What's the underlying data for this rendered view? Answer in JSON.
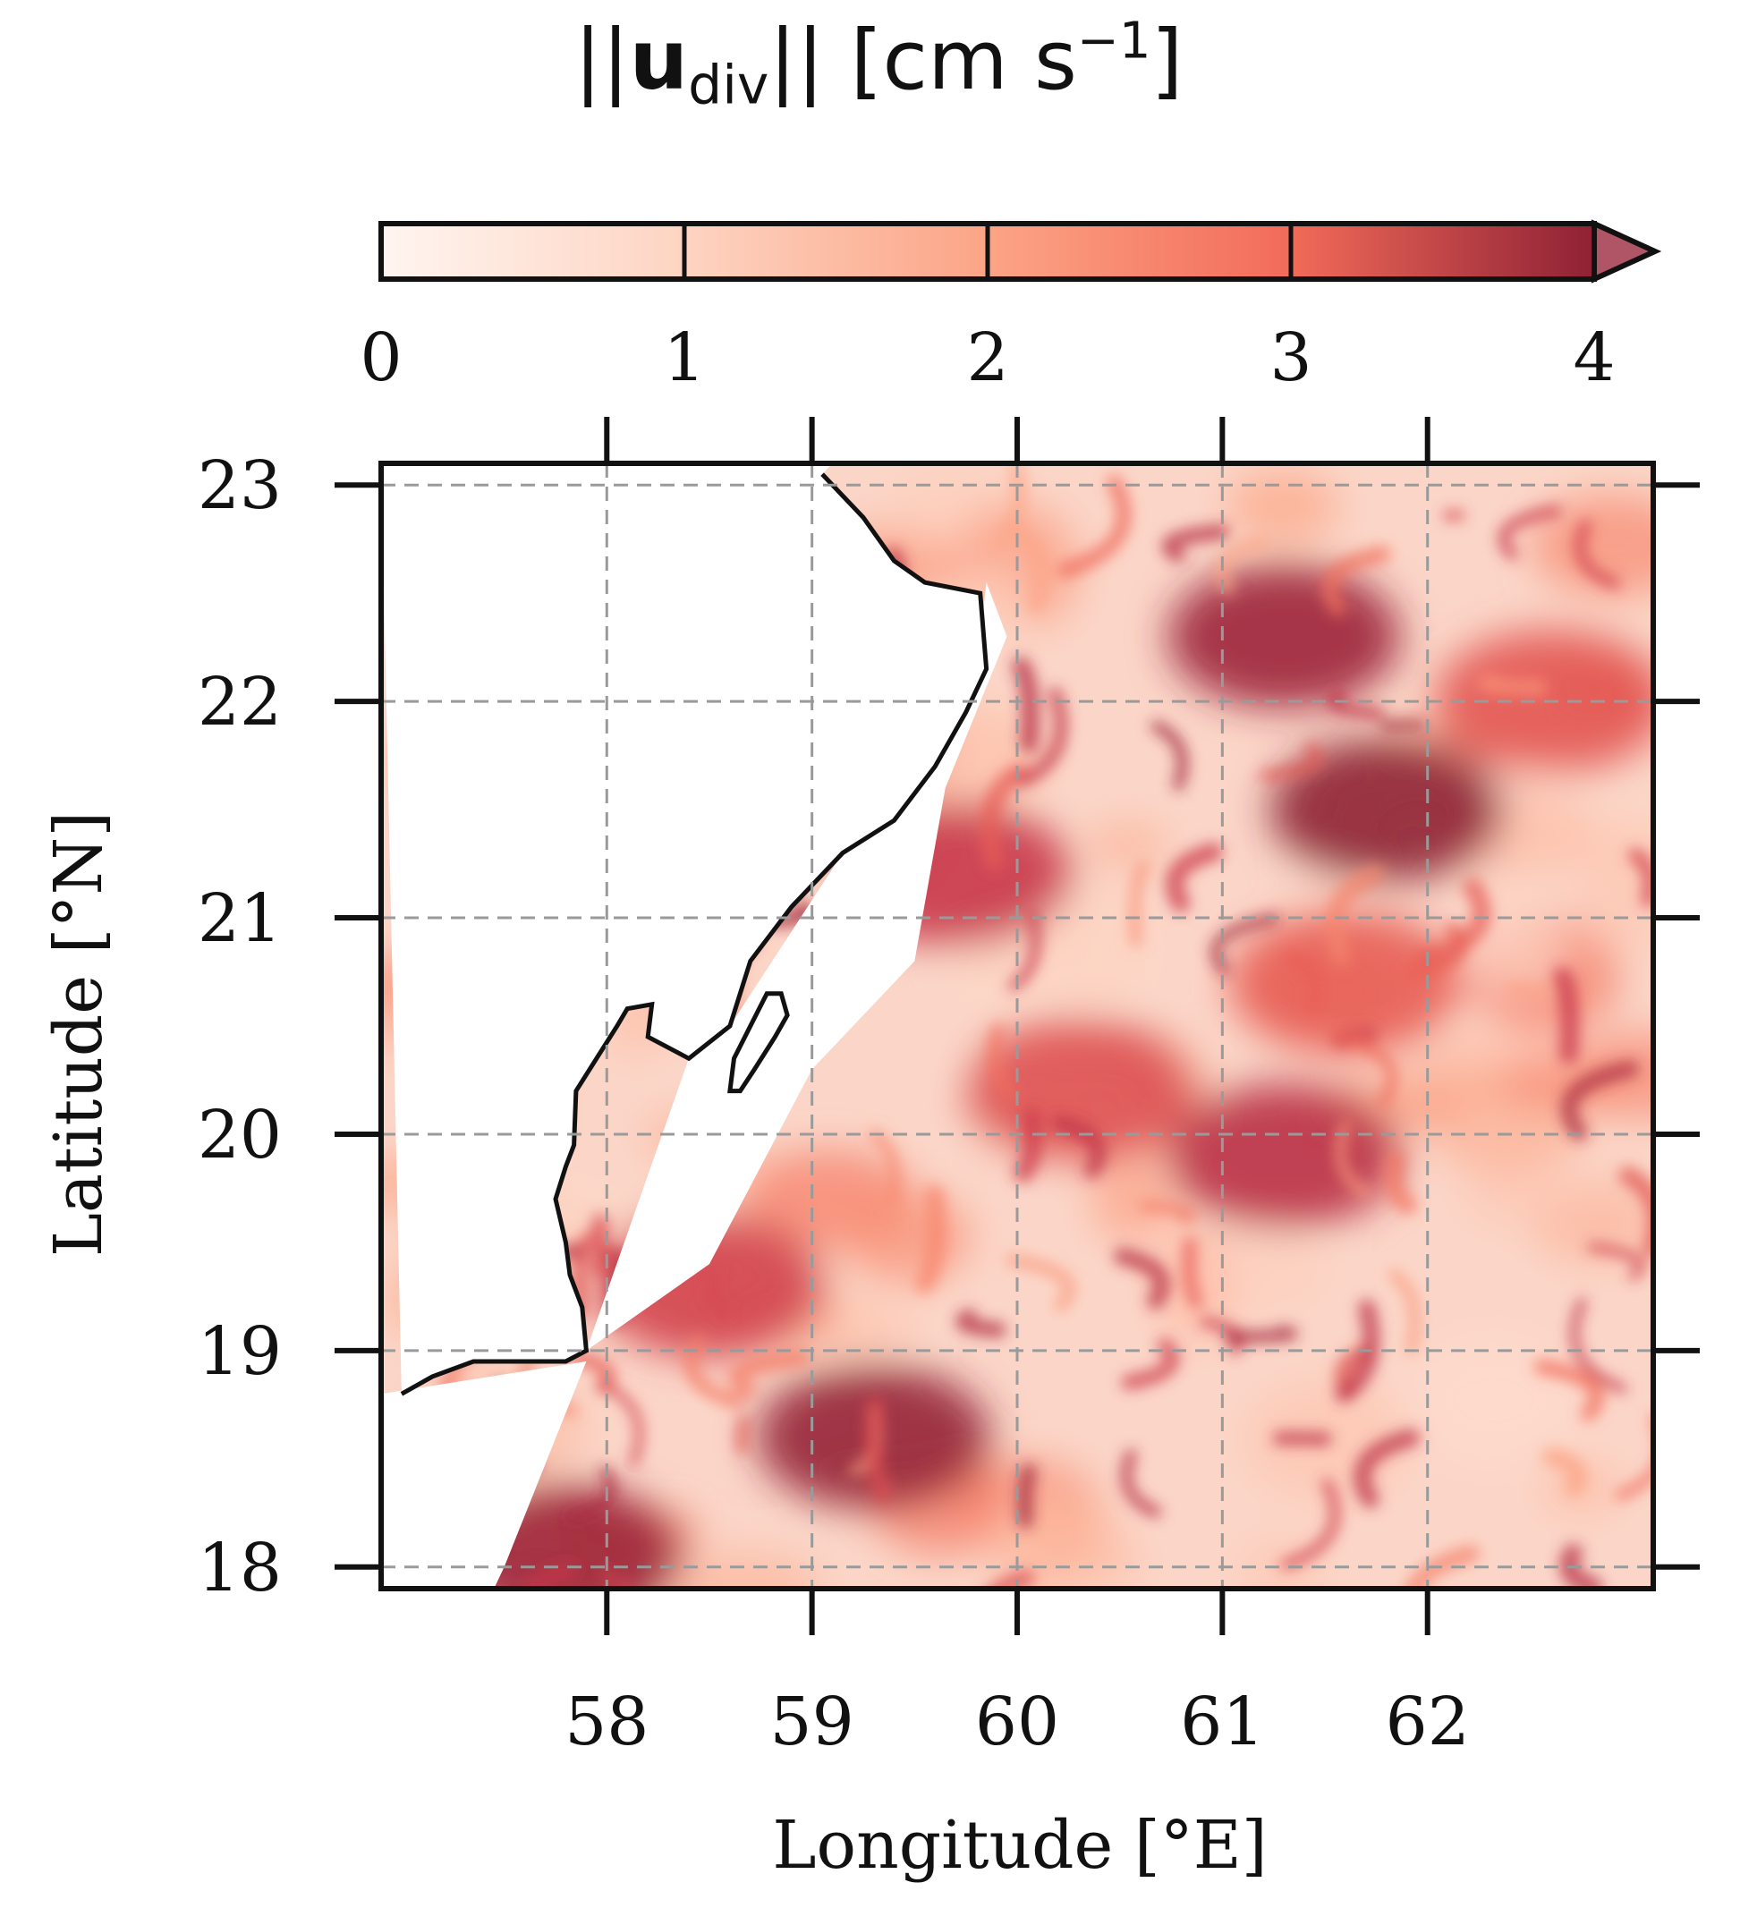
{
  "colorbar": {
    "label_prefix": "||",
    "label_vector": "u",
    "label_sub": "div",
    "label_suffix": "||",
    "label_units_open": "[cm s",
    "label_units_sup": "−1",
    "label_units_close": "]",
    "ticks": [
      "0",
      "1",
      "2",
      "3",
      "4"
    ],
    "extend": "max",
    "colors": [
      "#fff5f0",
      "#fdd4c2",
      "#fca486",
      "#f26b59",
      "#c9364a",
      "#8e2135"
    ]
  },
  "axes": {
    "xlabel": "Longitude [°E]",
    "ylabel": "Latitude [°N]",
    "x_ticks": [
      "58",
      "59",
      "60",
      "61",
      "62"
    ],
    "y_ticks": [
      "18",
      "19",
      "20",
      "21",
      "22",
      "23"
    ],
    "grid": true,
    "grid_style": "dashed",
    "extent": {
      "lon": [
        56.9,
        63.1
      ],
      "lat": [
        17.9,
        23.1
      ]
    }
  },
  "chart_data": {
    "type": "heatmap",
    "title": "",
    "xlabel": "Longitude [°E]",
    "ylabel": "Latitude [°N]",
    "xlim": [
      56.9,
      63.1
    ],
    "ylim": [
      17.9,
      23.1
    ],
    "clim": [
      0,
      4
    ],
    "colorbar_label": "||u_div|| [cm s−1]",
    "hotspots": [
      {
        "lon": 61.8,
        "lat": 21.5,
        "value": 4.0
      },
      {
        "lon": 61.3,
        "lat": 22.3,
        "value": 3.8
      },
      {
        "lon": 59.3,
        "lat": 18.6,
        "value": 3.9
      },
      {
        "lon": 57.8,
        "lat": 18.05,
        "value": 3.8
      },
      {
        "lon": 61.3,
        "lat": 19.9,
        "value": 3.4
      },
      {
        "lon": 59.7,
        "lat": 21.2,
        "value": 3.2
      },
      {
        "lon": 58.5,
        "lat": 19.3,
        "value": 3.0
      },
      {
        "lon": 60.3,
        "lat": 20.2,
        "value": 2.8
      },
      {
        "lon": 61.6,
        "lat": 20.7,
        "value": 2.6
      },
      {
        "lon": 62.6,
        "lat": 22.0,
        "value": 2.7
      }
    ],
    "coastline": [
      [
        57.0,
        18.8
      ],
      [
        57.15,
        18.88
      ],
      [
        57.35,
        18.95
      ],
      [
        57.8,
        18.95
      ],
      [
        57.9,
        19.0
      ],
      [
        57.88,
        19.2
      ],
      [
        57.82,
        19.35
      ],
      [
        57.8,
        19.5
      ],
      [
        57.75,
        19.7
      ],
      [
        57.8,
        19.85
      ],
      [
        57.84,
        19.95
      ],
      [
        57.85,
        20.2
      ],
      [
        57.95,
        20.35
      ],
      [
        58.05,
        20.5
      ],
      [
        58.1,
        20.58
      ],
      [
        58.22,
        20.6
      ],
      [
        58.2,
        20.45
      ],
      [
        58.4,
        20.35
      ],
      [
        58.6,
        20.5
      ],
      [
        58.7,
        20.8
      ],
      [
        58.9,
        21.05
      ],
      [
        59.15,
        21.3
      ],
      [
        59.4,
        21.45
      ],
      [
        59.6,
        21.7
      ],
      [
        59.75,
        21.95
      ],
      [
        59.85,
        22.15
      ],
      [
        59.82,
        22.5
      ],
      [
        59.55,
        22.55
      ],
      [
        59.4,
        22.65
      ],
      [
        59.25,
        22.85
      ],
      [
        59.05,
        23.05
      ]
    ],
    "island": [
      [
        58.85,
        20.65
      ],
      [
        58.88,
        20.55
      ],
      [
        58.82,
        20.45
      ],
      [
        58.72,
        20.3
      ],
      [
        58.65,
        20.2
      ],
      [
        58.6,
        20.2
      ],
      [
        58.62,
        20.35
      ],
      [
        58.7,
        20.5
      ],
      [
        58.78,
        20.65
      ],
      [
        58.85,
        20.65
      ]
    ]
  }
}
